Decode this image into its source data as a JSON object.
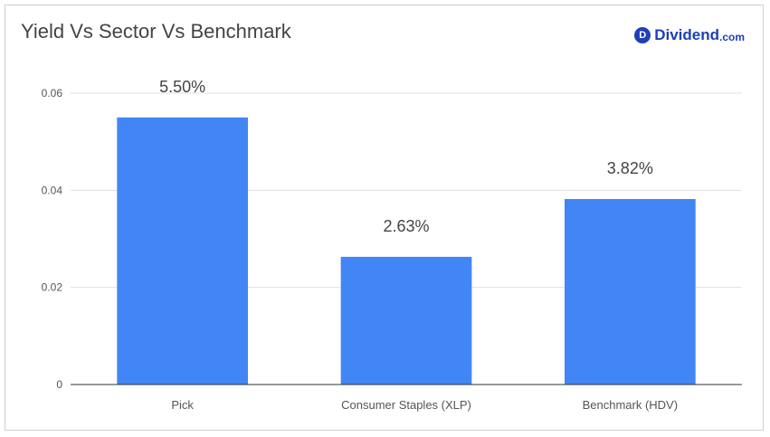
{
  "header": {
    "logo_mark": "D",
    "logo_name": "Dividend",
    "logo_tld": ".com"
  },
  "colors": {
    "bar": "#4285f4",
    "logo": "#1f3fb8",
    "gridline": "#e0e0e0",
    "axis": "#333333"
  },
  "chart_data": {
    "type": "bar",
    "title": "Yield Vs Sector Vs Benchmark",
    "xlabel": "",
    "ylabel": "",
    "ylim": [
      0,
      0.06
    ],
    "yticks": [
      0,
      0.02,
      0.04,
      0.06
    ],
    "ytick_labels": [
      "0",
      "0.02",
      "0.04",
      "0.06"
    ],
    "grid": true,
    "legend": "none",
    "categories": [
      "Pick",
      "Consumer Staples (XLP)",
      "Benchmark (HDV)"
    ],
    "values": [
      0.055,
      0.0263,
      0.0382
    ],
    "data_labels": [
      "5.50%",
      "2.63%",
      "3.82%"
    ]
  }
}
